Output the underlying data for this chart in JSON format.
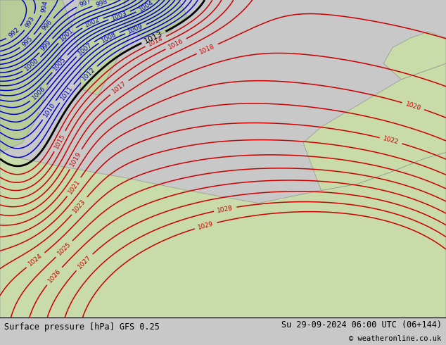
{
  "title_left": "Surface pressure [hPa] GFS 0.25",
  "title_right": "Su 29-09-2024 06:00 UTC (06+144)",
  "copyright": "© weatheronline.co.uk",
  "bg_color": "#c8c8c8",
  "sea_color": "#dce8f0",
  "land_color": "#c8dba8",
  "land_color2": "#b8cc98",
  "footer_bg": "#ffffff",
  "blue_contour_color": "#0000cc",
  "red_contour_color": "#cc0000",
  "black_contour_color": "#000000"
}
